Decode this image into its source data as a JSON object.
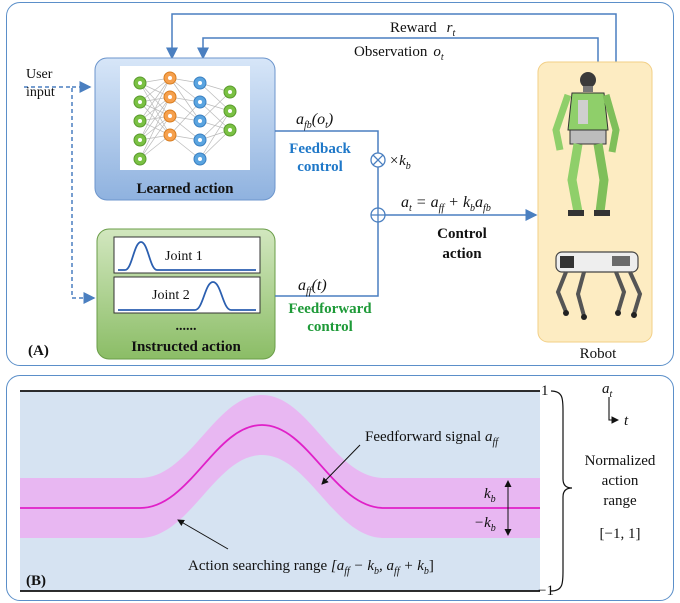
{
  "panel_a": {
    "label": "(A)",
    "user_input": [
      "User",
      "input"
    ],
    "reward": {
      "text": "Reward",
      "symbol": "r",
      "sub": "t"
    },
    "observation": {
      "text": "Observation",
      "symbol": "o",
      "sub": "t"
    },
    "learned_action": "Learned action",
    "feedback_expr": {
      "a": "a",
      "sub": "fb",
      "arg": "(o",
      "argsub": "t",
      "close": ")"
    },
    "feedback_control": [
      "Feedback",
      "control"
    ],
    "gain": {
      "times": "×k",
      "sub": "b"
    },
    "control_eq": {
      "lhs": "a",
      "lhs_sub": "t",
      "eq": " = a",
      "t1_sub": "ff",
      "plus": " + k",
      "k_sub": "b",
      "a2": "a",
      "a2_sub": "fb"
    },
    "control_action": [
      "Control",
      "action"
    ],
    "joint1": "Joint 1",
    "joint2": "Joint 2",
    "dots": "......",
    "instructed_action": "Instructed action",
    "feedforward_expr": {
      "a": "a",
      "sub": "ff",
      "arg": "(t)"
    },
    "feedforward_control": [
      "Feedforward",
      "control"
    ],
    "robot": "Robot"
  },
  "panel_b": {
    "label": "(B)",
    "tick_top": "1",
    "tick_bottom": "−1",
    "feedforward_signal": {
      "text": "Feedforward signal ",
      "a": "a",
      "sub": "ff"
    },
    "kb_pos": {
      "k": "k",
      "sub": "b"
    },
    "kb_neg": {
      "k": "−k",
      "sub": "b"
    },
    "search_range": {
      "text": "Action searching range ",
      "expr": "[a",
      "s1": "ff",
      "m": " − k",
      "s2": "b",
      "c": ", a",
      "s3": "ff",
      "p": " + k",
      "s4": "b",
      "close": "]"
    },
    "axes": {
      "y": "a",
      "y_sub": "t",
      "x": "t"
    },
    "normalized": [
      "Normalized",
      "action",
      "range"
    ],
    "range": "[−1, 1]"
  },
  "colors": {
    "frame": "#5b8fc9",
    "learned_box": "#a9c4e8",
    "instructed_box": "#9bc47c",
    "robot_box": "#fdecc2",
    "feedback_text": "#1f78c8",
    "feedforward_text": "#1e9a38",
    "signal": "#e020c8",
    "band": "#e8b7f2",
    "background_b": "#d6e3f2"
  }
}
